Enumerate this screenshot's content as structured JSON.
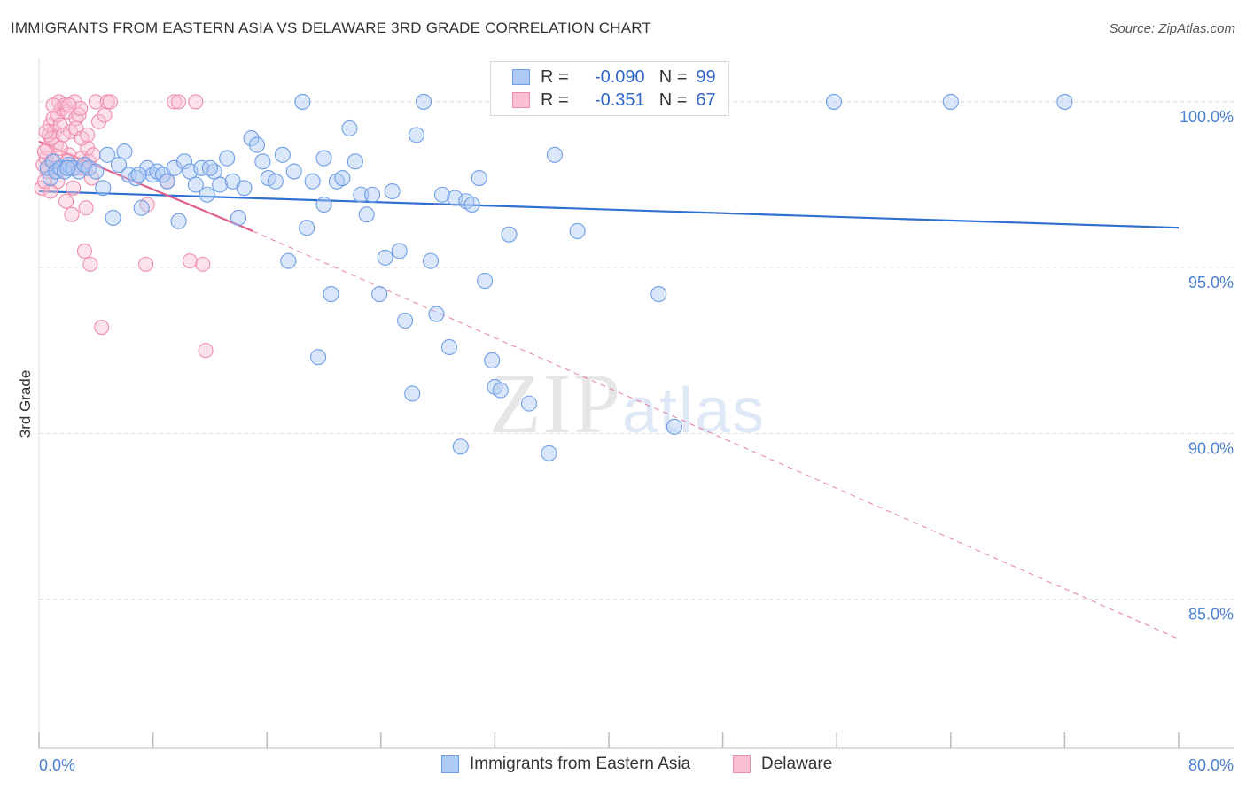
{
  "title": "IMMIGRANTS FROM EASTERN ASIA VS DELAWARE 3RD GRADE CORRELATION CHART",
  "source": "Source: ZipAtlas.com",
  "watermark": {
    "zip": "ZIP",
    "atlas": "atlas"
  },
  "legend": {
    "r_label": "R =",
    "n_label": "N =",
    "series1": {
      "r": "-0.090",
      "n": "99"
    },
    "series2": {
      "r": "-0.351",
      "n": "67"
    }
  },
  "bottom_legend": {
    "series1": "Immigrants from Eastern Asia",
    "series2": "Delaware"
  },
  "colors": {
    "blue": "#6f9ee8",
    "blue_fill": "#aecaf4",
    "blue_line": "#2f6fd0",
    "pink": "#f08cab",
    "pink_fill": "#f8c0d2",
    "pink_line": "#e0608c",
    "grid": "#dcdcdc",
    "tick_text": "#4a7fd0"
  },
  "chart_data": {
    "type": "scatter",
    "title": "IMMIGRANTS FROM EASTERN ASIA VS DELAWARE 3RD GRADE CORRELATION CHART",
    "xlabel": "",
    "ylabel": "3rd Grade",
    "xlim": [
      0,
      80
    ],
    "ylim": [
      80.5,
      101.2
    ],
    "x_tick_labels": [
      "0.0%",
      "80.0%"
    ],
    "y_ticks": [
      85,
      90,
      95,
      100
    ],
    "y_tick_labels": [
      "85.0%",
      "90.0%",
      "95.0%",
      "100.0%"
    ],
    "series": [
      {
        "name": "Immigrants from Eastern Asia",
        "r": -0.09,
        "n": 99,
        "trend": {
          "x0": 0,
          "y0": 97.3,
          "x1": 80,
          "y1": 96.2
        },
        "points": [
          [
            0.6,
            98.0
          ],
          [
            0.8,
            97.7
          ],
          [
            1.0,
            98.2
          ],
          [
            1.2,
            97.9
          ],
          [
            1.5,
            98.0
          ],
          [
            1.8,
            97.9
          ],
          [
            2.1,
            98.1
          ],
          [
            2.4,
            98.0
          ],
          [
            2.8,
            97.9
          ],
          [
            3.2,
            98.1
          ],
          [
            3.5,
            98.0
          ],
          [
            4.0,
            97.9
          ],
          [
            4.5,
            97.4
          ],
          [
            4.8,
            98.4
          ],
          [
            5.2,
            96.5
          ],
          [
            5.6,
            98.1
          ],
          [
            6.0,
            98.5
          ],
          [
            6.3,
            97.8
          ],
          [
            6.8,
            97.7
          ],
          [
            7.2,
            96.8
          ],
          [
            7.6,
            98.0
          ],
          [
            8.0,
            97.8
          ],
          [
            8.3,
            97.9
          ],
          [
            8.7,
            97.8
          ],
          [
            9.0,
            97.6
          ],
          [
            9.5,
            98.0
          ],
          [
            9.8,
            96.4
          ],
          [
            10.2,
            98.2
          ],
          [
            10.6,
            97.9
          ],
          [
            11.0,
            97.5
          ],
          [
            11.4,
            98.0
          ],
          [
            11.8,
            97.2
          ],
          [
            12.3,
            97.9
          ],
          [
            12.7,
            97.5
          ],
          [
            13.2,
            98.3
          ],
          [
            13.6,
            97.6
          ],
          [
            14.0,
            96.5
          ],
          [
            14.4,
            97.4
          ],
          [
            14.9,
            98.9
          ],
          [
            15.3,
            98.7
          ],
          [
            15.7,
            98.2
          ],
          [
            16.1,
            97.7
          ],
          [
            16.6,
            97.6
          ],
          [
            17.1,
            98.4
          ],
          [
            17.5,
            95.2
          ],
          [
            17.9,
            97.9
          ],
          [
            18.5,
            100.0
          ],
          [
            18.8,
            96.2
          ],
          [
            19.2,
            97.6
          ],
          [
            19.6,
            92.3
          ],
          [
            20.0,
            96.9
          ],
          [
            20.5,
            94.2
          ],
          [
            20.9,
            97.6
          ],
          [
            21.3,
            97.7
          ],
          [
            21.8,
            99.2
          ],
          [
            22.2,
            98.2
          ],
          [
            22.6,
            97.2
          ],
          [
            23.0,
            96.6
          ],
          [
            23.4,
            97.2
          ],
          [
            23.9,
            94.2
          ],
          [
            24.3,
            95.3
          ],
          [
            24.8,
            97.3
          ],
          [
            25.3,
            95.5
          ],
          [
            25.7,
            93.4
          ],
          [
            26.2,
            91.2
          ],
          [
            26.5,
            99.0
          ],
          [
            27.0,
            100.0
          ],
          [
            27.5,
            95.2
          ],
          [
            27.9,
            93.6
          ],
          [
            28.3,
            97.2
          ],
          [
            28.8,
            92.6
          ],
          [
            29.2,
            97.1
          ],
          [
            29.6,
            89.6
          ],
          [
            30.0,
            97.0
          ],
          [
            30.4,
            96.9
          ],
          [
            30.9,
            97.7
          ],
          [
            31.3,
            94.6
          ],
          [
            31.8,
            92.2
          ],
          [
            32.0,
            91.4
          ],
          [
            32.4,
            91.3
          ],
          [
            33.0,
            96.0
          ],
          [
            34.4,
            90.9
          ],
          [
            35.0,
            100.0
          ],
          [
            35.8,
            89.4
          ],
          [
            36.2,
            98.4
          ],
          [
            37.0,
            100.0
          ],
          [
            37.8,
            96.1
          ],
          [
            39.0,
            100.0
          ],
          [
            40.1,
            100.0
          ],
          [
            43.5,
            94.2
          ],
          [
            44.6,
            90.2
          ],
          [
            46.3,
            100.0
          ],
          [
            55.8,
            100.0
          ],
          [
            64.0,
            100.0
          ],
          [
            72.0,
            100.0
          ],
          [
            20.0,
            98.3
          ],
          [
            12.0,
            98.0
          ],
          [
            7.0,
            97.8
          ],
          [
            2.0,
            98.0
          ]
        ]
      },
      {
        "name": "Delaware",
        "r": -0.351,
        "n": 67,
        "trend": {
          "x0": 0,
          "y0": 98.8,
          "x1": 15.0,
          "y1": 96.1
        },
        "trend_dashed": {
          "x0": 15.0,
          "y0": 96.1,
          "x1": 80,
          "y1": 83.8
        },
        "points": [
          [
            0.2,
            97.4
          ],
          [
            0.3,
            98.1
          ],
          [
            0.4,
            97.6
          ],
          [
            0.5,
            98.3
          ],
          [
            0.6,
            98.6
          ],
          [
            0.7,
            99.0
          ],
          [
            0.8,
            99.3
          ],
          [
            0.9,
            98.2
          ],
          [
            1.0,
            99.5
          ],
          [
            1.1,
            99.1
          ],
          [
            1.2,
            98.7
          ],
          [
            1.3,
            99.6
          ],
          [
            1.4,
            100.0
          ],
          [
            1.5,
            99.3
          ],
          [
            1.6,
            99.8
          ],
          [
            1.7,
            98.1
          ],
          [
            1.8,
            99.9
          ],
          [
            1.9,
            97.0
          ],
          [
            2.0,
            99.7
          ],
          [
            2.1,
            98.4
          ],
          [
            2.2,
            99.1
          ],
          [
            2.3,
            96.6
          ],
          [
            2.4,
            97.4
          ],
          [
            2.5,
            100.0
          ],
          [
            2.6,
            99.5
          ],
          [
            2.7,
            98.0
          ],
          [
            2.8,
            99.6
          ],
          [
            2.9,
            99.8
          ],
          [
            3.0,
            98.3
          ],
          [
            3.1,
            98.0
          ],
          [
            3.2,
            95.5
          ],
          [
            3.3,
            96.8
          ],
          [
            3.4,
            98.6
          ],
          [
            3.5,
            98.2
          ],
          [
            3.6,
            95.1
          ],
          [
            3.7,
            97.7
          ],
          [
            3.8,
            98.4
          ],
          [
            4.0,
            100.0
          ],
          [
            4.2,
            99.4
          ],
          [
            4.4,
            93.2
          ],
          [
            4.6,
            99.6
          ],
          [
            4.8,
            100.0
          ],
          [
            5.0,
            100.0
          ],
          [
            7.5,
            95.1
          ],
          [
            7.6,
            96.9
          ],
          [
            9.0,
            97.6
          ],
          [
            9.5,
            100.0
          ],
          [
            9.8,
            100.0
          ],
          [
            10.6,
            95.2
          ],
          [
            11.0,
            100.0
          ],
          [
            11.5,
            95.1
          ],
          [
            11.7,
            92.5
          ],
          [
            0.4,
            98.5
          ],
          [
            0.6,
            97.9
          ],
          [
            0.9,
            98.9
          ],
          [
            1.3,
            97.6
          ],
          [
            1.7,
            99.0
          ],
          [
            2.1,
            99.9
          ],
          [
            2.6,
            99.2
          ],
          [
            3.0,
            98.9
          ],
          [
            3.4,
            99.0
          ],
          [
            1.0,
            99.9
          ],
          [
            1.5,
            98.6
          ],
          [
            2.0,
            98.2
          ],
          [
            0.5,
            99.1
          ],
          [
            0.8,
            97.3
          ],
          [
            1.2,
            98.0
          ]
        ]
      }
    ]
  }
}
